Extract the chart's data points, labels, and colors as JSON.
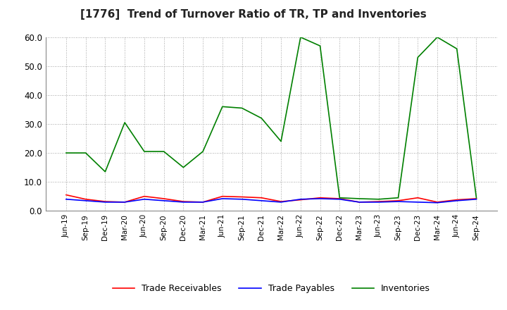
{
  "title": "[1776]  Trend of Turnover Ratio of TR, TP and Inventories",
  "x_labels": [
    "Jun-19",
    "Sep-19",
    "Dec-19",
    "Mar-20",
    "Jun-20",
    "Sep-20",
    "Dec-20",
    "Mar-21",
    "Jun-21",
    "Sep-21",
    "Dec-21",
    "Mar-22",
    "Jun-22",
    "Sep-22",
    "Dec-22",
    "Mar-23",
    "Jun-23",
    "Sep-23",
    "Dec-23",
    "Mar-24",
    "Jun-24",
    "Sep-24"
  ],
  "trade_receivables": [
    5.5,
    4.0,
    3.2,
    3.0,
    5.0,
    4.2,
    3.2,
    3.0,
    5.0,
    4.8,
    4.5,
    3.2,
    3.8,
    4.5,
    4.2,
    3.0,
    3.2,
    3.5,
    4.5,
    3.0,
    3.8,
    4.2
  ],
  "trade_payables": [
    4.0,
    3.5,
    3.0,
    3.0,
    4.0,
    3.5,
    3.0,
    3.0,
    4.2,
    4.0,
    3.5,
    3.0,
    4.0,
    4.2,
    4.0,
    3.0,
    3.0,
    3.2,
    3.0,
    2.8,
    3.5,
    4.0
  ],
  "inventories": [
    20.0,
    20.0,
    13.5,
    30.5,
    20.5,
    20.5,
    15.0,
    20.5,
    36.0,
    35.5,
    32.0,
    24.0,
    60.0,
    57.0,
    4.5,
    4.2,
    4.0,
    4.5,
    53.0,
    60.0,
    56.0,
    4.5
  ],
  "tr_color": "#ff0000",
  "tp_color": "#0000ff",
  "inv_color": "#008000",
  "ylim": [
    0.0,
    60.0
  ],
  "yticks": [
    0.0,
    10.0,
    20.0,
    30.0,
    40.0,
    50.0,
    60.0
  ],
  "bg_color": "#ffffff",
  "plot_bg_color": "#ffffff",
  "grid_color": "#888888",
  "title_fontsize": 11,
  "legend_labels": [
    "Trade Receivables",
    "Trade Payables",
    "Inventories"
  ]
}
